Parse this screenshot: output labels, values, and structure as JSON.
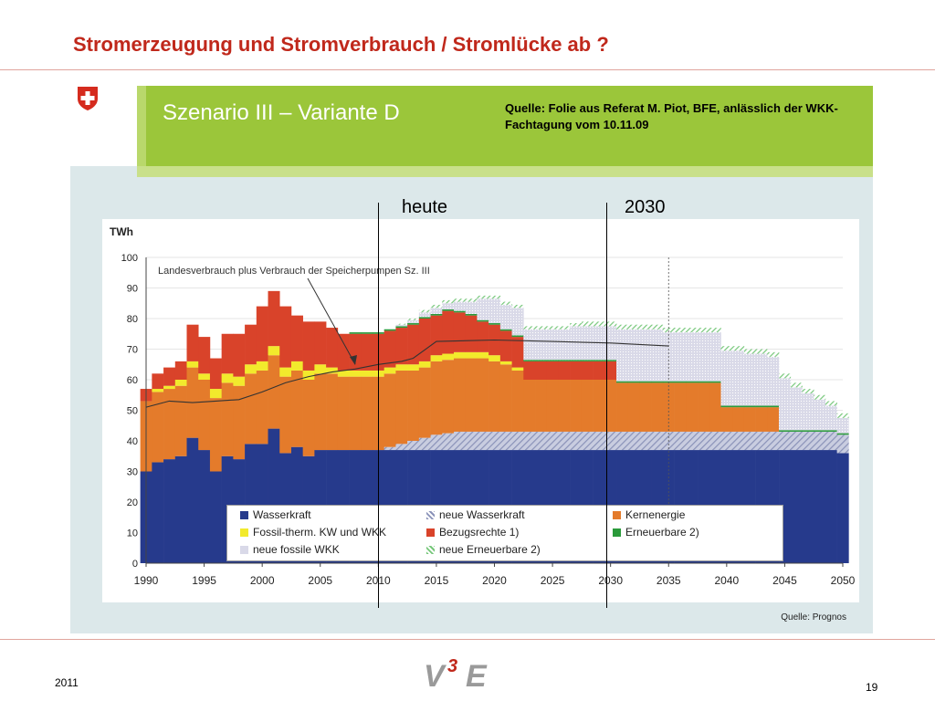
{
  "slide": {
    "title": "Stromerzeugung und Stromverbrauch / Stromlücke ab ?",
    "banner_title": "Szenario III – Variante D",
    "source_note": "Quelle: Folie aus Referat M. Piot, BFE, anlässlich der WKK-Fachtagung vom 10.11.09",
    "marker_heute": "heute",
    "marker_2030": "2030",
    "footer_year": "2011",
    "page_number": "19",
    "logo_text": "V3E"
  },
  "colors": {
    "title_red": "#c0281b",
    "banner_green": "#9bc63a",
    "wasserkraft": "#263a8c",
    "kernenergie": "#e47b2b",
    "bezugsrechte": "#d9432a",
    "fossil": "#f2ea2c",
    "erneuerbare": "#2a9a3a",
    "neue_fossile": "#d9d9e8",
    "neue_erneuerbare": "#76c77a",
    "neue_wasserkraft": "#8a92b8"
  },
  "chart_data": {
    "type": "area",
    "ylabel": "TWh",
    "ylim": [
      0,
      100
    ],
    "yticks": [
      "0",
      "10",
      "20",
      "30",
      "40",
      "50",
      "60",
      "70",
      "80",
      "90",
      "100"
    ],
    "xlim": [
      1990,
      2050
    ],
    "xticks": [
      "1990",
      "1995",
      "2000",
      "2005",
      "2010",
      "2015",
      "2020",
      "2025",
      "2030",
      "2035",
      "2040",
      "2045",
      "2050"
    ],
    "annotation": "Landesverbrauch plus Verbrauch der Speicherpumpen Sz. III",
    "source": "Quelle: Prognos",
    "legend_position": "bottom",
    "years": [
      1990,
      1991,
      1992,
      1993,
      1994,
      1995,
      1996,
      1997,
      1998,
      1999,
      2000,
      2001,
      2002,
      2003,
      2004,
      2005,
      2006,
      2007,
      2008,
      2009,
      2010,
      2011,
      2012,
      2013,
      2014,
      2015,
      2016,
      2017,
      2018,
      2019,
      2020,
      2021,
      2022,
      2023,
      2024,
      2025,
      2026,
      2027,
      2028,
      2029,
      2030,
      2031,
      2032,
      2033,
      2034,
      2035,
      2036,
      2037,
      2038,
      2039,
      2040,
      2041,
      2042,
      2043,
      2044,
      2045,
      2046,
      2047,
      2048,
      2049,
      2050
    ],
    "series": [
      {
        "key": "wasserkraft",
        "name": "Wasserkraft",
        "values": [
          30,
          33,
          34,
          35,
          41,
          37,
          30,
          35,
          34,
          39,
          39,
          44,
          36,
          38,
          35,
          37,
          37,
          37,
          37,
          37,
          37,
          37,
          37,
          37,
          37,
          37,
          37,
          37,
          37,
          37,
          37,
          37,
          37,
          37,
          37,
          37,
          37,
          37,
          37,
          37,
          37,
          37,
          37,
          37,
          37,
          37,
          37,
          37,
          37,
          37,
          37,
          37,
          37,
          37,
          37,
          37,
          37,
          37,
          37,
          37,
          36
        ]
      },
      {
        "key": "neue_wasserkraft",
        "name": "neue Wasserkraft",
        "values": [
          0,
          0,
          0,
          0,
          0,
          0,
          0,
          0,
          0,
          0,
          0,
          0,
          0,
          0,
          0,
          0,
          0,
          0,
          0,
          0,
          0,
          1,
          2,
          3,
          4,
          5,
          5.5,
          6,
          6,
          6,
          6,
          6,
          6,
          6,
          6,
          6,
          6,
          6,
          6,
          6,
          6,
          6,
          6,
          6,
          6,
          6,
          6,
          6,
          6,
          6,
          6,
          6,
          6,
          6,
          6,
          6,
          6,
          6,
          6,
          6,
          6
        ]
      },
      {
        "key": "kernenergie",
        "name": "Kernenergie",
        "values": [
          23,
          23,
          23,
          23,
          23,
          23,
          24,
          24,
          24,
          23,
          24,
          24,
          25,
          25,
          25,
          25,
          25,
          24,
          24,
          24,
          24,
          24,
          24,
          23,
          23,
          24,
          24,
          24,
          24,
          24,
          23,
          22,
          20,
          17,
          17,
          17,
          17,
          17,
          17,
          17,
          17,
          16,
          16,
          16,
          16,
          16,
          16,
          16,
          16,
          16,
          8,
          8,
          8,
          8,
          8,
          0,
          0,
          0,
          0,
          0,
          0
        ]
      },
      {
        "key": "fossil",
        "name": "Fossil-therm. KW und WKK",
        "values": [
          0,
          1,
          1,
          2,
          2,
          2,
          3,
          3,
          3,
          3,
          3,
          3,
          3,
          3,
          3,
          3,
          2,
          2,
          2,
          2,
          2,
          2,
          2,
          2,
          2,
          2,
          2,
          2,
          2,
          2,
          2,
          1,
          1,
          0,
          0,
          0,
          0,
          0,
          0,
          0,
          0,
          0,
          0,
          0,
          0,
          0,
          0,
          0,
          0,
          0,
          0,
          0,
          0,
          0,
          0,
          0,
          0,
          0,
          0,
          0,
          0
        ]
      },
      {
        "key": "bezugsrechte",
        "name": "Bezugsrechte 1)",
        "values": [
          4,
          5,
          6,
          6,
          12,
          12,
          10,
          13,
          14,
          13,
          18,
          18,
          20,
          15,
          16,
          14,
          13,
          12,
          12,
          12,
          12,
          12,
          12,
          13,
          14,
          13,
          14,
          13,
          12,
          10,
          10,
          10,
          10,
          6,
          6,
          6,
          6,
          6,
          6,
          6,
          6,
          0,
          0,
          0,
          0,
          0,
          0,
          0,
          0,
          0,
          0,
          0,
          0,
          0,
          0,
          0,
          0,
          0,
          0,
          0,
          0
        ]
      },
      {
        "key": "erneuerbare",
        "name": "Erneuerbare 2)",
        "values": [
          0,
          0,
          0,
          0,
          0,
          0,
          0,
          0,
          0,
          0,
          0,
          0,
          0,
          0,
          0,
          0,
          0,
          0,
          0.5,
          0.5,
          0.5,
          0.5,
          0.5,
          0.5,
          0.5,
          0.5,
          0.5,
          0.5,
          0.5,
          0.5,
          0.5,
          0.5,
          0.5,
          0.5,
          0.5,
          0.5,
          0.5,
          0.5,
          0.5,
          0.5,
          0.5,
          0.5,
          0.5,
          0.5,
          0.5,
          0.5,
          0.5,
          0.5,
          0.5,
          0.5,
          0.5,
          0.5,
          0.5,
          0.5,
          0.5,
          0.5,
          0.5,
          0.5,
          0.5,
          0.5,
          0.5
        ]
      },
      {
        "key": "neue_fossile",
        "name": "neue fossile WKK",
        "values": [
          0,
          0,
          0,
          0,
          0,
          0,
          0,
          0,
          0,
          0,
          0,
          0,
          0,
          0,
          0,
          0,
          0,
          0,
          0,
          0,
          0,
          0,
          0.5,
          1,
          1.5,
          2,
          2,
          3,
          4,
          7,
          8,
          8,
          9,
          10,
          10,
          10,
          10,
          11,
          11,
          11,
          11,
          17,
          17,
          17,
          17,
          16,
          16,
          16,
          16,
          16,
          18,
          18,
          17,
          17,
          16,
          17,
          14,
          12,
          10,
          8,
          5
        ]
      },
      {
        "key": "neue_erneuerbare",
        "name": "neue Erneuerbare 2)",
        "values": [
          0,
          0,
          0,
          0,
          0,
          0,
          0,
          0,
          0,
          0,
          0,
          0,
          0,
          0,
          0,
          0,
          0,
          0,
          0,
          0,
          0,
          0,
          0.3,
          0.5,
          0.8,
          1,
          1,
          1,
          1,
          1,
          1,
          1,
          1,
          1,
          1,
          1,
          1,
          1,
          1.5,
          1.5,
          1.5,
          1.5,
          1.5,
          1.5,
          1.5,
          1.5,
          1.5,
          1.5,
          1.5,
          1.5,
          1.5,
          1.5,
          1.5,
          1.5,
          1.5,
          1.5,
          1.5,
          1.5,
          1.5,
          1.5,
          1.5
        ]
      }
    ],
    "consumption_line": {
      "name": "Landesverbrauch plus Verbrauch der Speicherpumpen",
      "years": [
        1990,
        1992,
        1994,
        1996,
        1998,
        2000,
        2002,
        2004,
        2006,
        2008,
        2010,
        2012,
        2013,
        2015,
        2020,
        2025,
        2030,
        2035
      ],
      "values": [
        51,
        53,
        52.5,
        53,
        53.5,
        56,
        59,
        61,
        62.5,
        63.5,
        65,
        66,
        67,
        72.5,
        73,
        72.5,
        72,
        71
      ]
    }
  }
}
